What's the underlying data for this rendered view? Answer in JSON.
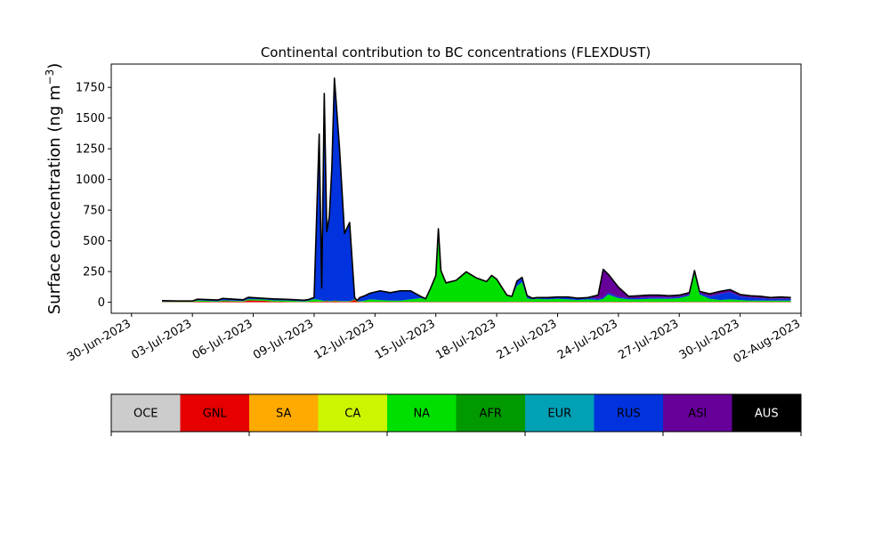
{
  "chart_data": {
    "type": "area",
    "stacked": true,
    "title": "Continental contribution to BC concentrations (FLEXDUST)",
    "ylabel": "Surface concentration (ng m",
    "ylabel_superscript": "−3",
    "ylabel_close": ")",
    "xlabel": "",
    "grid": false,
    "xlim": [
      "2023-06-29",
      "2023-08-02"
    ],
    "ylim": [
      -90,
      1940
    ],
    "x_ticks": [
      "30-Jun-2023",
      "03-Jul-2023",
      "06-Jul-2023",
      "09-Jul-2023",
      "12-Jul-2023",
      "15-Jul-2023",
      "18-Jul-2023",
      "21-Jul-2023",
      "24-Jul-2023",
      "27-Jul-2023",
      "30-Jul-2023",
      "02-Aug-2023"
    ],
    "y_ticks": [
      "0",
      "250",
      "500",
      "750",
      "1000",
      "1250",
      "1500",
      "1750"
    ],
    "x": [
      "2023-07-01 12:00",
      "2023-07-02 06:00",
      "2023-07-03 00:00",
      "2023-07-03 06:00",
      "2023-07-04 06:00",
      "2023-07-04 12:00",
      "2023-07-05 12:00",
      "2023-07-05 18:00",
      "2023-07-06 12:00",
      "2023-07-07 00:00",
      "2023-07-07 18:00",
      "2023-07-08 12:00",
      "2023-07-08 18:00",
      "2023-07-09 00:00",
      "2023-07-09 06:00",
      "2023-07-09 09:00",
      "2023-07-09 12:00",
      "2023-07-09 15:00",
      "2023-07-09 18:00",
      "2023-07-09 21:00",
      "2023-07-10 00:00",
      "2023-07-10 06:00",
      "2023-07-10 12:00",
      "2023-07-10 18:00",
      "2023-07-11 00:00",
      "2023-07-11 03:00",
      "2023-07-11 06:00",
      "2023-07-11 12:00",
      "2023-07-11 18:00",
      "2023-07-12 06:00",
      "2023-07-12 18:00",
      "2023-07-13 06:00",
      "2023-07-13 18:00",
      "2023-07-14 06:00",
      "2023-07-14 12:00",
      "2023-07-14 18:00",
      "2023-07-15 00:00",
      "2023-07-15 03:00",
      "2023-07-15 06:00",
      "2023-07-15 12:00",
      "2023-07-16 00:00",
      "2023-07-16 12:00",
      "2023-07-17 00:00",
      "2023-07-17 12:00",
      "2023-07-17 18:00",
      "2023-07-18 00:00",
      "2023-07-18 12:00",
      "2023-07-18 18:00",
      "2023-07-19 00:00",
      "2023-07-19 06:00",
      "2023-07-19 12:00",
      "2023-07-19 18:00",
      "2023-07-20 00:00",
      "2023-07-20 12:00",
      "2023-07-21 00:00",
      "2023-07-21 12:00",
      "2023-07-22 00:00",
      "2023-07-22 12:00",
      "2023-07-23 00:00",
      "2023-07-23 06:00",
      "2023-07-23 12:00",
      "2023-07-24 00:00",
      "2023-07-24 12:00",
      "2023-07-25 00:00",
      "2023-07-25 12:00",
      "2023-07-26 00:00",
      "2023-07-26 12:00",
      "2023-07-27 00:00",
      "2023-07-27 12:00",
      "2023-07-27 18:00",
      "2023-07-28 00:00",
      "2023-07-28 12:00",
      "2023-07-29 00:00",
      "2023-07-29 12:00",
      "2023-07-30 00:00",
      "2023-07-30 12:00",
      "2023-07-31 00:00",
      "2023-07-31 12:00",
      "2023-08-01 00:00",
      "2023-08-01 12:00"
    ],
    "series": [
      {
        "name": "OCE",
        "color": "#cccccc",
        "values": [
          0,
          0,
          0,
          0,
          0,
          0,
          0,
          0,
          0,
          0,
          0,
          0,
          0,
          0,
          0,
          0,
          0,
          0,
          0,
          0,
          0,
          0,
          0,
          0,
          0,
          0,
          0,
          0,
          0,
          0,
          0,
          0,
          0,
          0,
          0,
          0,
          0,
          0,
          0,
          0,
          0,
          0,
          0,
          0,
          0,
          0,
          0,
          0,
          0,
          0,
          0,
          0,
          0,
          0,
          0,
          0,
          0,
          0,
          0,
          0,
          0,
          0,
          0,
          0,
          0,
          0,
          0,
          0,
          0,
          0,
          0,
          0,
          0,
          0,
          0,
          0,
          0,
          0,
          0,
          0
        ]
      },
      {
        "name": "GNL",
        "color": "#e60000",
        "values": [
          2,
          2,
          2,
          5,
          3,
          8,
          5,
          15,
          12,
          5,
          3,
          2,
          3,
          5,
          5,
          5,
          5,
          10,
          5,
          5,
          10,
          5,
          5,
          5,
          20,
          5,
          3,
          3,
          3,
          3,
          3,
          3,
          3,
          3,
          3,
          3,
          3,
          3,
          3,
          3,
          3,
          3,
          3,
          3,
          3,
          3,
          3,
          3,
          3,
          3,
          3,
          3,
          3,
          3,
          3,
          3,
          3,
          3,
          3,
          3,
          3,
          3,
          3,
          3,
          3,
          3,
          3,
          3,
          3,
          3,
          3,
          3,
          3,
          3,
          3,
          3,
          3,
          3,
          3,
          3
        ]
      },
      {
        "name": "SA",
        "color": "#ffaa00",
        "values": [
          0,
          0,
          0,
          0,
          0,
          0,
          0,
          0,
          0,
          0,
          0,
          0,
          0,
          0,
          0,
          0,
          0,
          0,
          0,
          0,
          0,
          0,
          0,
          0,
          0,
          0,
          0,
          0,
          0,
          0,
          0,
          0,
          0,
          0,
          0,
          0,
          0,
          0,
          0,
          0,
          0,
          0,
          0,
          0,
          0,
          0,
          0,
          0,
          0,
          0,
          0,
          0,
          0,
          0,
          0,
          0,
          0,
          0,
          0,
          0,
          0,
          0,
          0,
          0,
          0,
          0,
          0,
          0,
          0,
          0,
          0,
          0,
          0,
          0,
          0,
          0,
          0,
          0,
          0,
          0
        ]
      },
      {
        "name": "CA",
        "color": "#ccf600",
        "values": [
          0,
          0,
          0,
          0,
          0,
          0,
          0,
          0,
          0,
          0,
          0,
          0,
          0,
          0,
          0,
          0,
          0,
          0,
          0,
          0,
          0,
          0,
          0,
          0,
          0,
          0,
          0,
          0,
          0,
          0,
          0,
          0,
          0,
          0,
          0,
          0,
          0,
          0,
          0,
          0,
          0,
          0,
          0,
          0,
          0,
          0,
          0,
          0,
          0,
          0,
          0,
          0,
          0,
          0,
          0,
          0,
          0,
          0,
          0,
          0,
          0,
          0,
          0,
          0,
          0,
          0,
          0,
          0,
          0,
          0,
          0,
          0,
          0,
          0,
          0,
          0,
          0,
          0,
          0,
          0
        ]
      },
      {
        "name": "NA",
        "color": "#00e000",
        "values": [
          3,
          3,
          3,
          10,
          5,
          8,
          5,
          10,
          10,
          10,
          10,
          5,
          10,
          20,
          15,
          10,
          5,
          5,
          5,
          5,
          5,
          5,
          5,
          5,
          5,
          5,
          5,
          10,
          20,
          15,
          10,
          10,
          20,
          30,
          20,
          110,
          210,
          590,
          250,
          150,
          170,
          240,
          190,
          160,
          210,
          180,
          50,
          40,
          130,
          160,
          30,
          20,
          25,
          20,
          25,
          20,
          15,
          20,
          15,
          25,
          60,
          30,
          20,
          20,
          25,
          25,
          25,
          30,
          50,
          230,
          60,
          25,
          15,
          20,
          15,
          10,
          10,
          10,
          10,
          10
        ]
      },
      {
        "name": "AFR",
        "color": "#009900",
        "values": [
          0,
          0,
          0,
          0,
          0,
          0,
          0,
          0,
          0,
          0,
          0,
          0,
          0,
          0,
          0,
          0,
          0,
          0,
          0,
          0,
          0,
          0,
          0,
          0,
          0,
          0,
          0,
          0,
          0,
          0,
          0,
          0,
          0,
          0,
          0,
          0,
          0,
          0,
          0,
          0,
          0,
          0,
          0,
          0,
          0,
          0,
          0,
          0,
          0,
          0,
          0,
          0,
          0,
          0,
          0,
          0,
          0,
          0,
          0,
          0,
          0,
          0,
          0,
          0,
          0,
          0,
          0,
          0,
          0,
          0,
          0,
          0,
          0,
          0,
          0,
          0,
          0,
          0,
          0,
          0
        ]
      },
      {
        "name": "EUR",
        "color": "#00a0b5",
        "values": [
          0,
          0,
          0,
          0,
          0,
          0,
          0,
          0,
          0,
          0,
          0,
          0,
          0,
          0,
          0,
          0,
          0,
          0,
          0,
          0,
          0,
          0,
          0,
          0,
          0,
          0,
          0,
          0,
          0,
          0,
          0,
          0,
          0,
          0,
          0,
          0,
          0,
          0,
          0,
          0,
          0,
          0,
          0,
          0,
          0,
          0,
          0,
          0,
          0,
          0,
          0,
          0,
          0,
          0,
          0,
          0,
          0,
          0,
          0,
          0,
          0,
          0,
          0,
          0,
          0,
          0,
          0,
          0,
          0,
          0,
          0,
          0,
          0,
          0,
          0,
          0,
          0,
          0,
          0,
          0
        ]
      },
      {
        "name": "RUS",
        "color": "#0033dd",
        "values": [
          8,
          5,
          5,
          10,
          10,
          15,
          10,
          15,
          10,
          12,
          10,
          10,
          10,
          15,
          1350,
          100,
          1690,
          560,
          690,
          1090,
          1810,
          1250,
          550,
          640,
          10,
          5,
          30,
          40,
          50,
          75,
          65,
          80,
          70,
          15,
          5,
          5,
          5,
          5,
          5,
          5,
          5,
          5,
          5,
          5,
          5,
          5,
          5,
          5,
          40,
          40,
          20,
          10,
          10,
          15,
          15,
          20,
          15,
          15,
          10,
          10,
          15,
          10,
          10,
          10,
          10,
          10,
          10,
          10,
          10,
          10,
          10,
          20,
          50,
          60,
          30,
          25,
          20,
          15,
          15,
          15
        ]
      },
      {
        "name": "ASI",
        "color": "#660099",
        "values": [
          0,
          0,
          0,
          0,
          0,
          0,
          0,
          0,
          0,
          0,
          0,
          0,
          0,
          0,
          0,
          0,
          0,
          0,
          0,
          0,
          0,
          0,
          0,
          0,
          0,
          0,
          0,
          0,
          0,
          0,
          0,
          0,
          0,
          0,
          0,
          0,
          0,
          0,
          0,
          0,
          0,
          0,
          0,
          0,
          0,
          0,
          0,
          0,
          0,
          0,
          0,
          0,
          0,
          0,
          0,
          0,
          0,
          0,
          30,
          230,
          150,
          80,
          15,
          20,
          20,
          20,
          15,
          15,
          15,
          15,
          15,
          20,
          20,
          20,
          15,
          15,
          15,
          10,
          15,
          10
        ]
      },
      {
        "name": "AUS",
        "color": "#000000",
        "values": [
          0,
          0,
          0,
          0,
          0,
          0,
          0,
          0,
          0,
          0,
          0,
          0,
          0,
          0,
          0,
          0,
          0,
          0,
          0,
          0,
          0,
          0,
          0,
          0,
          0,
          0,
          0,
          0,
          0,
          0,
          0,
          0,
          0,
          0,
          0,
          0,
          0,
          0,
          0,
          0,
          0,
          0,
          0,
          0,
          0,
          0,
          0,
          0,
          0,
          0,
          0,
          0,
          0,
          0,
          0,
          0,
          0,
          0,
          0,
          0,
          0,
          0,
          0,
          0,
          0,
          0,
          0,
          0,
          0,
          0,
          0,
          0,
          0,
          0,
          0,
          0,
          0,
          0,
          0,
          0
        ]
      }
    ],
    "legend": {
      "placement": "bottom colorbar",
      "items": [
        {
          "label": "OCE",
          "color": "#cccccc",
          "text_color": "#000000"
        },
        {
          "label": "GNL",
          "color": "#e60000",
          "text_color": "#000000"
        },
        {
          "label": "SA",
          "color": "#ffaa00",
          "text_color": "#000000"
        },
        {
          "label": "CA",
          "color": "#ccf600",
          "text_color": "#000000"
        },
        {
          "label": "NA",
          "color": "#00e000",
          "text_color": "#000000"
        },
        {
          "label": "AFR",
          "color": "#009900",
          "text_color": "#000000"
        },
        {
          "label": "EUR",
          "color": "#00a0b5",
          "text_color": "#000000"
        },
        {
          "label": "RUS",
          "color": "#0033dd",
          "text_color": "#000000"
        },
        {
          "label": "ASI",
          "color": "#660099",
          "text_color": "#000000"
        },
        {
          "label": "AUS",
          "color": "#000000",
          "text_color": "#ffffff"
        }
      ]
    }
  }
}
